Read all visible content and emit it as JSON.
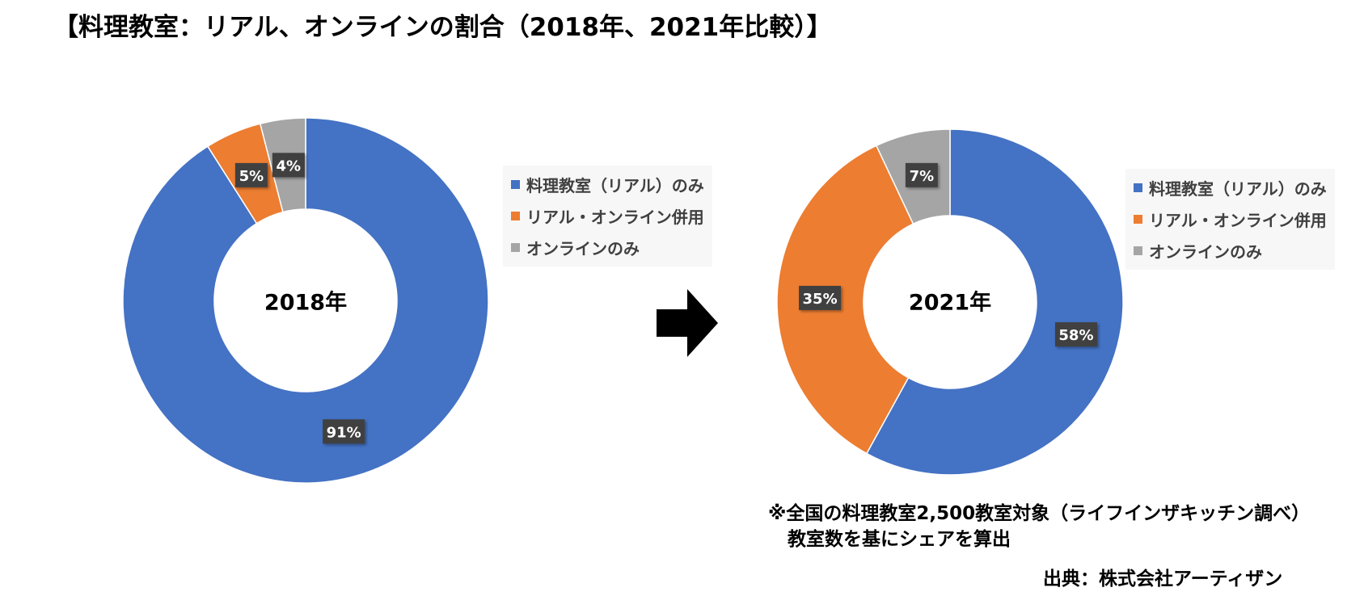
{
  "title": "【料理教室：リアル、オンラインの割合（2018年、2021年比較）】",
  "colors": {
    "real": "#4472c4",
    "hybrid": "#ed7d31",
    "online": "#a5a5a5"
  },
  "chart_data": [
    {
      "type": "pie",
      "center_label": "2018年",
      "categories": [
        "料理教室（リアル）のみ",
        "リアル・オンライン併用",
        "オンラインのみ"
      ],
      "values": [
        91,
        5,
        4
      ],
      "data_labels": [
        "91%",
        "5%",
        "4%"
      ],
      "legend": "right"
    },
    {
      "type": "pie",
      "center_label": "2021年",
      "categories": [
        "料理教室（リアル）のみ",
        "リアル・オンライン併用",
        "オンラインのみ"
      ],
      "values": [
        58,
        35,
        7
      ],
      "data_labels": [
        "58%",
        "35%",
        "7%"
      ],
      "legend": "right"
    }
  ],
  "note": {
    "line1": "※全国の料理教室2,500教室対象（ライフインザキッチン調べ）",
    "line2": "教室数を基にシェアを算出"
  },
  "source": "出典：株式会社アーティザン",
  "arrow_icon": "right-arrow-icon"
}
